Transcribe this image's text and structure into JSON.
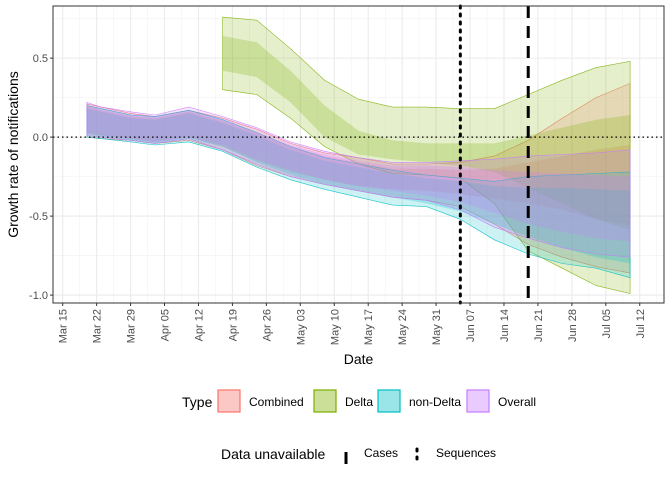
{
  "chart_data": {
    "type": "area",
    "xlabel": "Date",
    "ylabel": "Growth rate of notifications",
    "ylim": [
      -1.05,
      0.83
    ],
    "y_ticks": [
      0.5,
      0.0,
      -0.5,
      -1.0
    ],
    "y_tick_labels": [
      "0.5",
      "0.0",
      "-0.5",
      "-1.0"
    ],
    "x_ticks": [
      0,
      7,
      14,
      21,
      28,
      35,
      42,
      49,
      56,
      63,
      70,
      77,
      84,
      91,
      98,
      105,
      112,
      119
    ],
    "x_tick_labels": [
      "Mar 15",
      "Mar 22",
      "Mar 29",
      "Apr 05",
      "Apr 12",
      "Apr 19",
      "Apr 26",
      "May 03",
      "May 10",
      "May 17",
      "May 24",
      "May 31",
      "Jun 07",
      "Jun 14",
      "Jun 21",
      "Jun 28",
      "Jul 05",
      "Jul 12"
    ],
    "x_axis_note": "days since Mar 15",
    "zero_line": 0,
    "reference_lines": [
      {
        "x": 82,
        "label": "Sequences",
        "style": "dotted"
      },
      {
        "x": 96,
        "label": "Cases",
        "style": "dashed"
      }
    ],
    "series": [
      {
        "name": "Combined",
        "color": "#F8766D",
        "x": [
          5,
          8,
          14,
          19,
          26,
          33,
          40,
          47,
          54,
          61,
          68,
          75,
          82,
          89,
          96,
          103,
          110,
          117
        ],
        "median": [
          0.11,
          0.09,
          0.06,
          0.05,
          0.09,
          0.02,
          -0.06,
          -0.13,
          -0.18,
          -0.22,
          -0.25,
          -0.25,
          -0.26,
          -0.27,
          -0.27,
          -0.28,
          -0.3,
          -0.32
        ],
        "inner": [
          [
            0.02,
            0.2
          ],
          [
            0.01,
            0.17
          ],
          [
            -0.01,
            0.13
          ],
          [
            -0.03,
            0.12
          ],
          [
            0.0,
            0.16
          ],
          [
            -0.06,
            0.1
          ],
          [
            -0.15,
            0.03
          ],
          [
            -0.22,
            -0.06
          ],
          [
            -0.27,
            -0.12
          ],
          [
            -0.31,
            -0.16
          ],
          [
            -0.33,
            -0.2
          ],
          [
            -0.34,
            -0.2
          ],
          [
            -0.36,
            -0.21
          ],
          [
            -0.39,
            -0.2
          ],
          [
            -0.42,
            -0.16
          ],
          [
            -0.46,
            -0.12
          ],
          [
            -0.52,
            -0.08
          ],
          [
            -0.56,
            -0.05
          ]
        ],
        "outer": [
          [
            0.0,
            0.21
          ],
          [
            -0.01,
            0.19
          ],
          [
            -0.02,
            0.15
          ],
          [
            -0.04,
            0.13
          ],
          [
            -0.02,
            0.17
          ],
          [
            -0.08,
            0.12
          ],
          [
            -0.18,
            0.05
          ],
          [
            -0.25,
            -0.04
          ],
          [
            -0.3,
            -0.1
          ],
          [
            -0.34,
            -0.13
          ],
          [
            -0.38,
            -0.17
          ],
          [
            -0.4,
            -0.17
          ],
          [
            -0.44,
            -0.16
          ],
          [
            -0.55,
            -0.12
          ],
          [
            -0.68,
            -0.02
          ],
          [
            -0.76,
            0.12
          ],
          [
            -0.82,
            0.25
          ],
          [
            -0.86,
            0.34
          ]
        ]
      },
      {
        "name": "Delta",
        "color": "#7CAE00",
        "x": [
          33,
          40,
          47,
          54,
          61,
          68,
          75,
          82,
          89,
          96,
          103,
          110,
          117
        ],
        "median": [
          0.5,
          0.47,
          0.3,
          0.07,
          -0.06,
          -0.1,
          -0.11,
          -0.12,
          -0.13,
          -0.14,
          -0.14,
          -0.14,
          -0.13
        ],
        "inner": [
          [
            0.42,
            0.64
          ],
          [
            0.38,
            0.6
          ],
          [
            0.22,
            0.42
          ],
          [
            0.0,
            0.2
          ],
          [
            -0.11,
            0.04
          ],
          [
            -0.14,
            -0.02
          ],
          [
            -0.16,
            -0.04
          ],
          [
            -0.18,
            -0.04
          ],
          [
            -0.22,
            -0.04
          ],
          [
            -0.32,
            0.01
          ],
          [
            -0.42,
            0.06
          ],
          [
            -0.52,
            0.11
          ],
          [
            -0.59,
            0.14
          ]
        ],
        "outer": [
          [
            0.3,
            0.76
          ],
          [
            0.27,
            0.74
          ],
          [
            0.12,
            0.56
          ],
          [
            -0.06,
            0.36
          ],
          [
            -0.17,
            0.24
          ],
          [
            -0.23,
            0.19
          ],
          [
            -0.24,
            0.19
          ],
          [
            -0.26,
            0.18
          ],
          [
            -0.42,
            0.18
          ],
          [
            -0.72,
            0.27
          ],
          [
            -0.83,
            0.36
          ],
          [
            -0.94,
            0.44
          ],
          [
            -0.99,
            0.48
          ]
        ]
      },
      {
        "name": "non-Delta",
        "color": "#00BFC4",
        "x": [
          5,
          8,
          14,
          19,
          26,
          33,
          40,
          47,
          54,
          61,
          68,
          75,
          82,
          89,
          96,
          103,
          110,
          117
        ],
        "median": [
          0.1,
          0.08,
          0.05,
          0.04,
          0.08,
          0.02,
          -0.08,
          -0.16,
          -0.22,
          -0.26,
          -0.3,
          -0.33,
          -0.37,
          -0.42,
          -0.46,
          -0.52,
          -0.56,
          -0.6
        ],
        "inner": [
          [
            0.02,
            0.18
          ],
          [
            0.0,
            0.16
          ],
          [
            -0.02,
            0.12
          ],
          [
            -0.04,
            0.11
          ],
          [
            -0.01,
            0.15
          ],
          [
            -0.06,
            0.09
          ],
          [
            -0.16,
            0.01
          ],
          [
            -0.24,
            -0.08
          ],
          [
            -0.3,
            -0.15
          ],
          [
            -0.34,
            -0.19
          ],
          [
            -0.38,
            -0.23
          ],
          [
            -0.42,
            -0.26
          ],
          [
            -0.47,
            -0.28
          ],
          [
            -0.55,
            -0.31
          ],
          [
            -0.63,
            -0.32
          ],
          [
            -0.7,
            -0.32
          ],
          [
            -0.76,
            -0.33
          ],
          [
            -0.8,
            -0.34
          ]
        ],
        "outer": [
          [
            0.0,
            0.2
          ],
          [
            -0.01,
            0.18
          ],
          [
            -0.03,
            0.14
          ],
          [
            -0.05,
            0.13
          ],
          [
            -0.03,
            0.17
          ],
          [
            -0.09,
            0.11
          ],
          [
            -0.19,
            0.03
          ],
          [
            -0.27,
            -0.06
          ],
          [
            -0.33,
            -0.13
          ],
          [
            -0.38,
            -0.17
          ],
          [
            -0.43,
            -0.21
          ],
          [
            -0.44,
            -0.24
          ],
          [
            -0.52,
            -0.26
          ],
          [
            -0.65,
            -0.28
          ],
          [
            -0.74,
            -0.25
          ],
          [
            -0.8,
            -0.24
          ],
          [
            -0.83,
            -0.23
          ],
          [
            -0.89,
            -0.22
          ]
        ]
      },
      {
        "name": "Overall",
        "color": "#C77CFF",
        "x": [
          5,
          8,
          14,
          19,
          26,
          33,
          40,
          47,
          54,
          61,
          68,
          75,
          82,
          89,
          96,
          103,
          110,
          117
        ],
        "median": [
          0.12,
          0.1,
          0.07,
          0.06,
          0.1,
          0.03,
          -0.05,
          -0.13,
          -0.19,
          -0.23,
          -0.26,
          -0.27,
          -0.29,
          -0.33,
          -0.37,
          -0.4,
          -0.43,
          -0.45
        ],
        "inner": [
          [
            0.03,
            0.2
          ],
          [
            0.01,
            0.18
          ],
          [
            -0.01,
            0.14
          ],
          [
            -0.03,
            0.13
          ],
          [
            0.0,
            0.17
          ],
          [
            -0.05,
            0.11
          ],
          [
            -0.14,
            0.03
          ],
          [
            -0.21,
            -0.05
          ],
          [
            -0.27,
            -0.11
          ],
          [
            -0.31,
            -0.15
          ],
          [
            -0.34,
            -0.18
          ],
          [
            -0.37,
            -0.18
          ],
          [
            -0.41,
            -0.19
          ],
          [
            -0.48,
            -0.21
          ],
          [
            -0.55,
            -0.22
          ],
          [
            -0.6,
            -0.23
          ],
          [
            -0.64,
            -0.24
          ],
          [
            -0.66,
            -0.25
          ]
        ],
        "outer": [
          [
            0.01,
            0.22
          ],
          [
            0.0,
            0.19
          ],
          [
            -0.02,
            0.16
          ],
          [
            -0.04,
            0.14
          ],
          [
            -0.01,
            0.19
          ],
          [
            -0.08,
            0.13
          ],
          [
            -0.17,
            0.06
          ],
          [
            -0.25,
            -0.03
          ],
          [
            -0.3,
            -0.09
          ],
          [
            -0.34,
            -0.13
          ],
          [
            -0.38,
            -0.16
          ],
          [
            -0.4,
            -0.16
          ],
          [
            -0.46,
            -0.15
          ],
          [
            -0.57,
            -0.14
          ],
          [
            -0.64,
            -0.12
          ],
          [
            -0.7,
            -0.11
          ],
          [
            -0.74,
            -0.1
          ],
          [
            -0.76,
            -0.08
          ]
        ]
      }
    ],
    "legend": {
      "type_title": "Type",
      "type_entries": [
        "Combined",
        "Delta",
        "non-Delta",
        "Overall"
      ],
      "unavailable_title": "Data unavailable",
      "unavailable_entries": [
        "Cases",
        "Sequences"
      ]
    }
  }
}
